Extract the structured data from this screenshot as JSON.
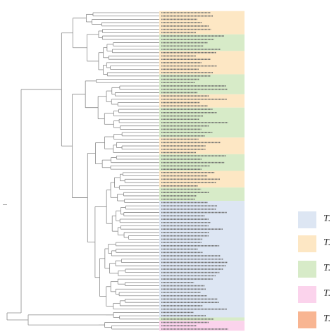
{
  "figure": {
    "clades": [
      {
        "id": "orange",
        "color": "#fde7c4"
      },
      {
        "id": "green",
        "color": "#d7ebc8"
      },
      {
        "id": "blue",
        "color": "#dde6f3"
      },
      {
        "id": "pink",
        "color": "#fbd3ec"
      },
      {
        "id": "salmon",
        "color": "#f8b592"
      }
    ],
    "leaf_count": 96,
    "leaf_clades": [
      "orange",
      "orange",
      "orange",
      "orange",
      "orange",
      "orange",
      "orange",
      "green",
      "green",
      "green",
      "green",
      "green",
      "orange",
      "orange",
      "orange",
      "orange",
      "orange",
      "orange",
      "orange",
      "green",
      "green",
      "green",
      "green",
      "green",
      "green",
      "orange",
      "orange",
      "orange",
      "orange",
      "green",
      "green",
      "green",
      "green",
      "green",
      "green",
      "green",
      "green",
      "green",
      "orange",
      "orange",
      "orange",
      "orange",
      "orange",
      "green",
      "green",
      "green",
      "green",
      "green",
      "orange",
      "orange",
      "orange",
      "orange",
      "orange",
      "green",
      "green",
      "green",
      "green",
      "blue",
      "blue",
      "blue",
      "blue",
      "blue",
      "blue",
      "blue",
      "blue",
      "blue",
      "blue",
      "blue",
      "blue",
      "blue",
      "blue",
      "blue",
      "blue",
      "blue",
      "blue",
      "blue",
      "blue",
      "blue",
      "blue",
      "blue",
      "blue",
      "blue",
      "blue",
      "blue",
      "blue",
      "blue",
      "blue",
      "blue",
      "blue",
      "blue",
      "blue",
      "blue",
      "green",
      "pink",
      "pink",
      "pink",
      "salmon",
      "salmon",
      "salmon"
    ],
    "legend": [
      {
        "label": "T.",
        "clade": "blue"
      },
      {
        "label": "T.",
        "clade": "orange"
      },
      {
        "label": "T.",
        "clade": "green"
      },
      {
        "label": "T.",
        "clade": "pink"
      },
      {
        "label": "T.",
        "clade": "salmon"
      }
    ]
  }
}
